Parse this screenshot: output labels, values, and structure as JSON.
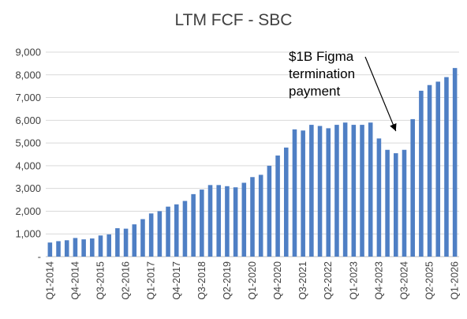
{
  "title": "LTM FCF - SBC",
  "colors": {
    "bar": "#4F7FC4",
    "grid": "#D9D9D9",
    "axis": "#BFBFBF",
    "text": "#404040"
  },
  "chart_data": {
    "type": "bar",
    "title": "LTM FCF - SBC",
    "xlabel": "",
    "ylabel": "",
    "ylim": [
      0,
      9000
    ],
    "grid": true,
    "legend": "none",
    "y_tick_labels": [
      "-",
      "1,000",
      "2,000",
      "3,000",
      "4,000",
      "5,000",
      "6,000",
      "7,000",
      "8,000",
      "9,000"
    ],
    "x_tick_labels": [
      "Q1-2014",
      "Q4-2014",
      "Q3-2015",
      "Q2-2016",
      "Q1-2017",
      "Q4-2017",
      "Q3-2018",
      "Q2-2019",
      "Q1-2020",
      "Q4-2020",
      "Q3-2021",
      "Q2-2022",
      "Q1-2023",
      "Q4-2023",
      "Q3-2024",
      "Q2-2025",
      "Q1-2026"
    ],
    "categories": [
      "Q1-2014",
      "Q2-2014",
      "Q3-2014",
      "Q4-2014",
      "Q1-2015",
      "Q2-2015",
      "Q3-2015",
      "Q4-2015",
      "Q1-2016",
      "Q2-2016",
      "Q3-2016",
      "Q4-2016",
      "Q1-2017",
      "Q2-2017",
      "Q3-2017",
      "Q4-2017",
      "Q1-2018",
      "Q2-2018",
      "Q3-2018",
      "Q4-2018",
      "Q1-2019",
      "Q2-2019",
      "Q3-2019",
      "Q4-2019",
      "Q1-2020",
      "Q2-2020",
      "Q3-2020",
      "Q4-2020",
      "Q1-2021",
      "Q2-2021",
      "Q3-2021",
      "Q4-2021",
      "Q1-2022",
      "Q2-2022",
      "Q3-2022",
      "Q4-2022",
      "Q1-2023",
      "Q2-2023",
      "Q3-2023",
      "Q4-2023",
      "Q1-2024",
      "Q2-2024",
      "Q3-2024",
      "Q4-2024",
      "Q1-2025",
      "Q2-2025",
      "Q3-2025",
      "Q4-2025",
      "Q1-2026"
    ],
    "values": [
      620,
      680,
      720,
      820,
      760,
      800,
      930,
      980,
      1250,
      1230,
      1420,
      1650,
      1900,
      2000,
      2200,
      2300,
      2450,
      2750,
      2950,
      3150,
      3150,
      3100,
      3050,
      3250,
      3500,
      3600,
      4000,
      4450,
      4800,
      5600,
      5550,
      5800,
      5750,
      5650,
      5800,
      5900,
      5800,
      5800,
      5900,
      5200,
      4700,
      4550,
      4700,
      6050,
      7300,
      7550,
      7700,
      7900,
      8300
    ],
    "annotations": [
      {
        "text_lines": [
          "$1B Figma",
          "termination",
          "payment"
        ],
        "arrow_to_category": "Q2-2024"
      }
    ]
  }
}
